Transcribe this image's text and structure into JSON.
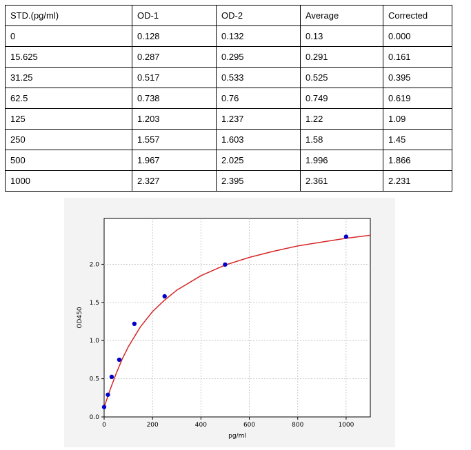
{
  "table": {
    "headers": [
      "STD.(pg/ml)",
      "OD-1",
      "OD-2",
      "Average",
      "Corrected"
    ],
    "rows": [
      [
        "0",
        "0.128",
        "0.132",
        "0.13",
        "0.000"
      ],
      [
        "15.625",
        "0.287",
        "0.295",
        "0.291",
        "0.161"
      ],
      [
        "31.25",
        "0.517",
        "0.533",
        "0.525",
        "0.395"
      ],
      [
        "62.5",
        "0.738",
        "0.76",
        "0.749",
        "0.619"
      ],
      [
        "125",
        "1.203",
        "1.237",
        "1.22",
        "1.09"
      ],
      [
        "250",
        "1.557",
        "1.603",
        "1.58",
        "1.45"
      ],
      [
        "500",
        "1.967",
        "2.025",
        "1.996",
        "1.866"
      ],
      [
        "1000",
        "2.327",
        "2.395",
        "2.361",
        "2.231"
      ]
    ]
  },
  "chart_data": {
    "type": "scatter",
    "title": "",
    "xlabel": "pg/ml",
    "ylabel": "OD450",
    "xlim": [
      0,
      1100
    ],
    "ylim": [
      0,
      2.6
    ],
    "xticks": [
      "0",
      "200",
      "400",
      "600",
      "800",
      "1000"
    ],
    "yticks": [
      "0.0",
      "0.5",
      "1.0",
      "1.5",
      "2.0"
    ],
    "grid": true,
    "legend": "none",
    "points": {
      "x": [
        0,
        15.625,
        31.25,
        62.5,
        125,
        250,
        500,
        1000
      ],
      "y": [
        0.13,
        0.291,
        0.525,
        0.749,
        1.22,
        1.58,
        1.996,
        2.361
      ]
    },
    "fit_curve": {
      "x": [
        0,
        10,
        25,
        50,
        75,
        100,
        150,
        200,
        250,
        300,
        400,
        500,
        600,
        700,
        800,
        900,
        1000,
        1100
      ],
      "y": [
        0.13,
        0.22,
        0.36,
        0.57,
        0.76,
        0.92,
        1.18,
        1.38,
        1.53,
        1.66,
        1.85,
        1.99,
        2.09,
        2.17,
        2.24,
        2.29,
        2.34,
        2.38
      ]
    },
    "colors": {
      "points": "#0000cc",
      "curve": "#d62728",
      "background": "#f3f3f3"
    }
  }
}
